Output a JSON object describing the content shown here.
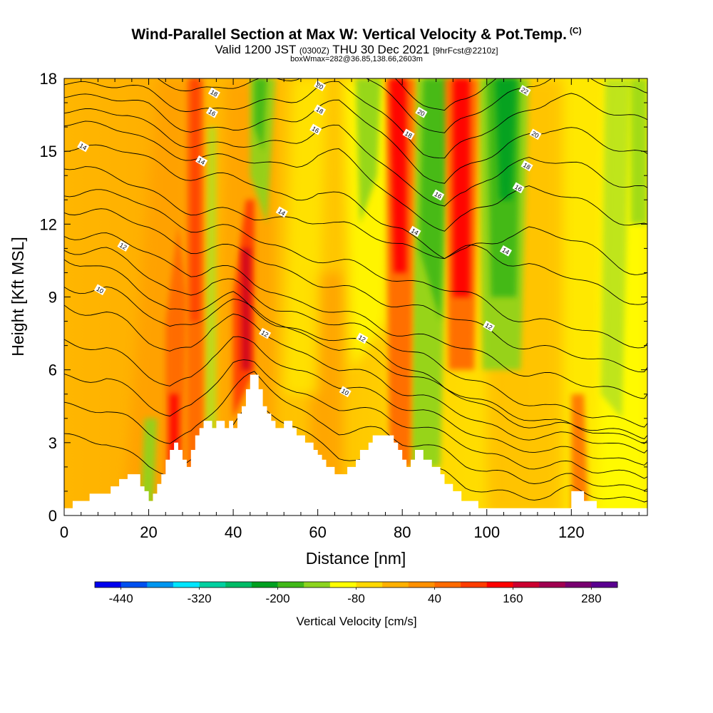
{
  "title": {
    "main": "Wind-Parallel Section at Max W: Vertical Velocity & Pot.Temp.",
    "copyright": "(C)",
    "valid_prefix": "Valid 1200 JST",
    "valid_utc": "(0300Z)",
    "valid_date": "THU 30 Dec 2021",
    "forecast": "[9hrFcst@2210z]",
    "box_line": "boxWmax=282@36.85,138.66,2603m"
  },
  "chart_data": {
    "type": "contour",
    "xlabel": "Distance [nm]",
    "ylabel": "Height [Kft MSL]",
    "xlim": [
      0,
      138
    ],
    "ylim": [
      0,
      18
    ],
    "xticks": [
      "0",
      "20",
      "40",
      "60",
      "80",
      "100",
      "120"
    ],
    "yticks": [
      "0",
      "3",
      "6",
      "9",
      "12",
      "15",
      "18"
    ],
    "colorbar": {
      "title": "Vertical Velocity [cm/s]",
      "labels": [
        "-440",
        "-320",
        "-200",
        "-80",
        "40",
        "160",
        "280"
      ],
      "colors": [
        "#0000ee",
        "#0050f0",
        "#0096f0",
        "#00e6ff",
        "#00d0a0",
        "#00bb66",
        "#00a020",
        "#40b818",
        "#8cd41e",
        "#ffff00",
        "#ffd800",
        "#ffb000",
        "#ff9000",
        "#ff6a00",
        "#ff3c00",
        "#ff0000",
        "#cc0030",
        "#a00050",
        "#780070",
        "#5a0090"
      ]
    },
    "terrain_kft": [
      [
        0,
        0.3
      ],
      [
        2,
        0.3
      ],
      [
        2,
        0.6
      ],
      [
        6,
        0.6
      ],
      [
        6,
        0.9
      ],
      [
        11,
        0.9
      ],
      [
        11,
        1.2
      ],
      [
        13,
        1.2
      ],
      [
        13,
        1.5
      ],
      [
        15,
        1.5
      ],
      [
        15,
        1.7
      ],
      [
        18,
        1.7
      ],
      [
        18,
        1.2
      ],
      [
        19,
        1.2
      ],
      [
        19,
        1.0
      ],
      [
        20,
        1.0
      ],
      [
        20,
        0.6
      ],
      [
        21,
        0.6
      ],
      [
        21,
        0.9
      ],
      [
        22,
        0.9
      ],
      [
        22,
        1.3
      ],
      [
        23,
        1.3
      ],
      [
        23,
        1.7
      ],
      [
        24,
        1.7
      ],
      [
        24,
        2.3
      ],
      [
        25,
        2.3
      ],
      [
        25,
        2.7
      ],
      [
        26,
        2.7
      ],
      [
        26,
        3.0
      ],
      [
        27,
        3.0
      ],
      [
        27,
        2.7
      ],
      [
        28,
        2.7
      ],
      [
        28,
        2.3
      ],
      [
        29,
        2.3
      ],
      [
        29,
        2.0
      ],
      [
        30,
        2.0
      ],
      [
        30,
        2.7
      ],
      [
        31,
        2.7
      ],
      [
        31,
        3.3
      ],
      [
        32,
        3.3
      ],
      [
        32,
        3.6
      ],
      [
        33,
        3.6
      ],
      [
        33,
        3.9
      ],
      [
        35,
        3.9
      ],
      [
        35,
        3.6
      ],
      [
        36,
        3.6
      ],
      [
        36,
        3.9
      ],
      [
        38,
        3.9
      ],
      [
        38,
        3.6
      ],
      [
        39,
        3.6
      ],
      [
        39,
        3.9
      ],
      [
        40,
        3.9
      ],
      [
        40,
        3.6
      ],
      [
        41,
        3.6
      ],
      [
        41,
        4.2
      ],
      [
        42,
        4.2
      ],
      [
        42,
        4.5
      ],
      [
        43,
        4.5
      ],
      [
        43,
        5.2
      ],
      [
        44,
        5.2
      ],
      [
        44,
        5.8
      ],
      [
        46,
        5.8
      ],
      [
        46,
        5.2
      ],
      [
        47,
        5.2
      ],
      [
        47,
        4.5
      ],
      [
        48,
        4.5
      ],
      [
        48,
        4.2
      ],
      [
        49,
        4.2
      ],
      [
        49,
        3.9
      ],
      [
        50,
        3.9
      ],
      [
        50,
        3.6
      ],
      [
        52,
        3.6
      ],
      [
        52,
        3.9
      ],
      [
        54,
        3.9
      ],
      [
        54,
        3.6
      ],
      [
        55,
        3.6
      ],
      [
        55,
        3.3
      ],
      [
        57,
        3.3
      ],
      [
        57,
        3.0
      ],
      [
        59,
        3.0
      ],
      [
        59,
        2.7
      ],
      [
        60,
        2.7
      ],
      [
        60,
        2.5
      ],
      [
        61,
        2.5
      ],
      [
        61,
        2.3
      ],
      [
        62,
        2.3
      ],
      [
        62,
        2.0
      ],
      [
        64,
        2.0
      ],
      [
        64,
        1.7
      ],
      [
        67,
        1.7
      ],
      [
        67,
        2.0
      ],
      [
        69,
        2.0
      ],
      [
        69,
        2.3
      ],
      [
        70,
        2.3
      ],
      [
        70,
        2.7
      ],
      [
        72,
        2.7
      ],
      [
        72,
        3.0
      ],
      [
        73,
        3.0
      ],
      [
        73,
        3.3
      ],
      [
        78,
        3.3
      ],
      [
        78,
        3.0
      ],
      [
        79,
        3.0
      ],
      [
        79,
        2.7
      ],
      [
        80,
        2.7
      ],
      [
        80,
        2.3
      ],
      [
        81,
        2.3
      ],
      [
        81,
        2.0
      ],
      [
        82,
        2.0
      ],
      [
        82,
        2.3
      ],
      [
        83,
        2.3
      ],
      [
        83,
        2.7
      ],
      [
        85,
        2.7
      ],
      [
        85,
        2.3
      ],
      [
        87,
        2.3
      ],
      [
        87,
        2.0
      ],
      [
        89,
        2.0
      ],
      [
        89,
        1.7
      ],
      [
        90,
        1.7
      ],
      [
        90,
        1.3
      ],
      [
        92,
        1.3
      ],
      [
        92,
        1.0
      ],
      [
        94,
        1.0
      ],
      [
        94,
        0.6
      ],
      [
        98,
        0.6
      ],
      [
        98,
        0.3
      ],
      [
        120,
        0.3
      ],
      [
        120,
        1.0
      ],
      [
        123,
        1.0
      ],
      [
        123,
        0.6
      ],
      [
        126,
        0.6
      ],
      [
        126,
        0.3
      ],
      [
        138,
        0.3
      ]
    ],
    "updraft_cores": [
      {
        "x": 26,
        "z": [
          0.5,
          12
        ]
      },
      {
        "x": 31,
        "z": [
          1,
          18
        ]
      },
      {
        "x": 43,
        "z": [
          4.5,
          13
        ]
      },
      {
        "x": 80,
        "z": [
          2,
          18
        ]
      },
      {
        "x": 95,
        "z": [
          8,
          18
        ]
      },
      {
        "x": 122,
        "z": [
          0.5,
          4
        ]
      }
    ],
    "downdraft_cores": [
      {
        "x": 47,
        "z": [
          12,
          18
        ]
      },
      {
        "x": 72,
        "z": [
          14,
          18
        ]
      },
      {
        "x": 86,
        "z": [
          8,
          18
        ]
      },
      {
        "x": 104,
        "z": [
          6,
          18
        ]
      },
      {
        "x": 130,
        "z": [
          4,
          18
        ]
      }
    ],
    "isentrope_labels": [
      {
        "text": "10",
        "x": 8.5,
        "z": 9.3
      },
      {
        "text": "10",
        "x": 66.5,
        "z": 5.1
      },
      {
        "text": "12",
        "x": 14,
        "z": 11.1
      },
      {
        "text": "12",
        "x": 47.5,
        "z": 7.5
      },
      {
        "text": "12",
        "x": 70.5,
        "z": 7.3
      },
      {
        "text": "12",
        "x": 100.5,
        "z": 7.8
      },
      {
        "text": "14",
        "x": 4.5,
        "z": 15.2
      },
      {
        "text": "14",
        "x": 32.5,
        "z": 14.6
      },
      {
        "text": "14",
        "x": 51.5,
        "z": 12.5
      },
      {
        "text": "14",
        "x": 83,
        "z": 11.7
      },
      {
        "text": "14",
        "x": 104.5,
        "z": 10.9
      },
      {
        "text": "16",
        "x": 35,
        "z": 16.6
      },
      {
        "text": "16",
        "x": 59.5,
        "z": 15.9
      },
      {
        "text": "16",
        "x": 88.5,
        "z": 13.2
      },
      {
        "text": "16",
        "x": 107.5,
        "z": 13.5
      },
      {
        "text": "18",
        "x": 35.5,
        "z": 17.4
      },
      {
        "text": "18",
        "x": 60.5,
        "z": 16.7
      },
      {
        "text": "18",
        "x": 81.5,
        "z": 15.7
      },
      {
        "text": "18",
        "x": 109.5,
        "z": 14.4
      },
      {
        "text": "20",
        "x": 60.5,
        "z": 17.7
      },
      {
        "text": "20",
        "x": 84.5,
        "z": 16.6
      },
      {
        "text": "20",
        "x": 111.5,
        "z": 15.7
      },
      {
        "text": "22",
        "x": 109,
        "z": 17.5
      }
    ]
  }
}
